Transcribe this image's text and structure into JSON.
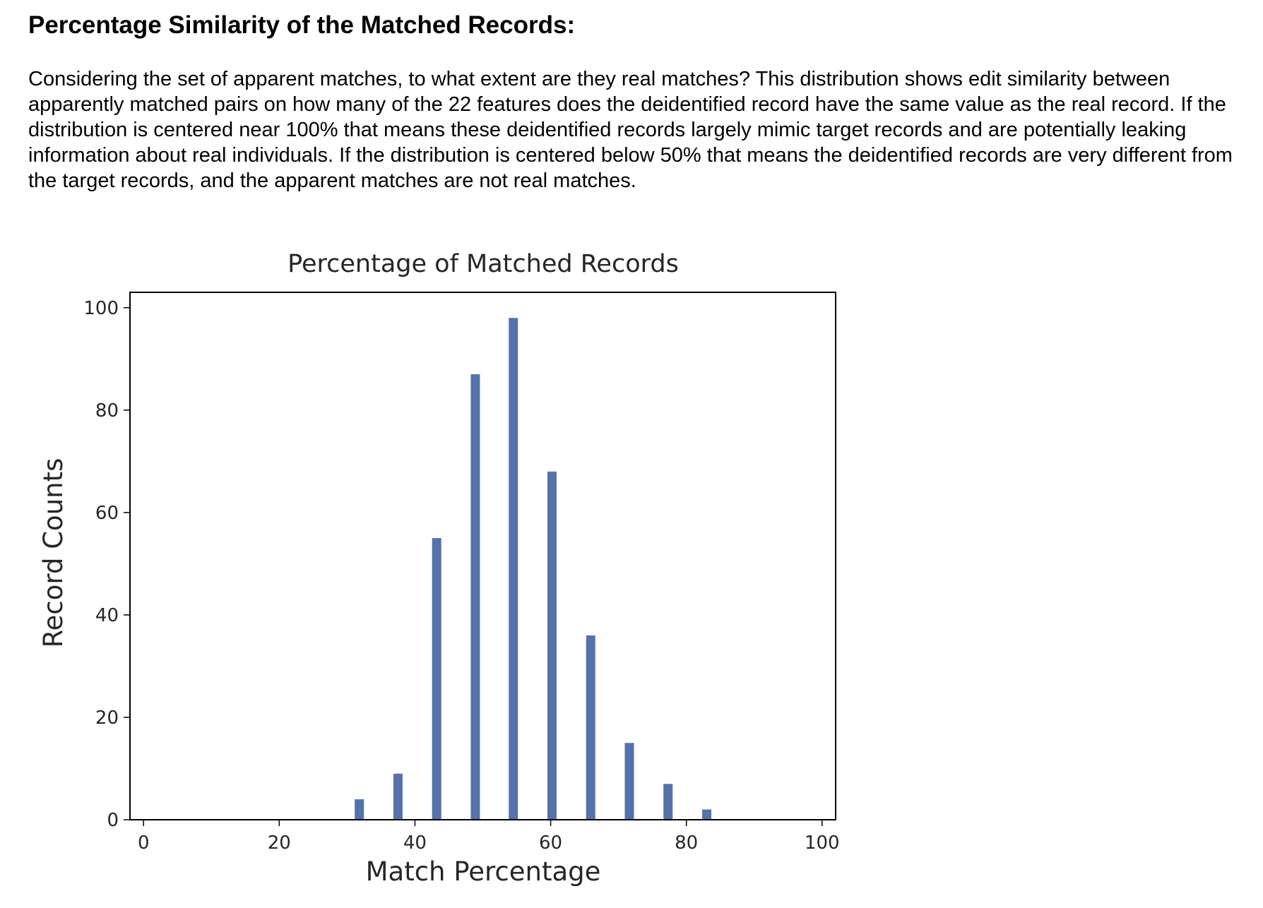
{
  "section": {
    "title": "Percentage Similarity of the Matched Records:",
    "description": "Considering the set of apparent matches, to what extent are they real matches? This distribution shows edit similarity between apparently matched pairs on how many of the 22 features does the deidentified record have the same value as the real record. If the distribution is centered near 100% that means these deidentified records largely mimic target records and are potentially leaking information about real individuals. If the distribution is centered below 50% that means the deidentified records are very different from the target records, and the apparent matches are not real matches."
  },
  "chart_data": {
    "type": "bar",
    "title": "Percentage of Matched Records",
    "xlabel": "Match Percentage",
    "ylabel": "Record Counts",
    "x": [
      31.8,
      37.5,
      43.2,
      48.9,
      54.5,
      60.2,
      65.9,
      71.6,
      77.3,
      83.0
    ],
    "values": [
      4,
      9,
      55,
      87,
      98,
      68,
      36,
      15,
      7,
      2
    ],
    "xlim": [
      -2,
      102
    ],
    "ylim": [
      0,
      103
    ],
    "xticks": [
      0,
      20,
      40,
      60,
      80,
      100
    ],
    "yticks": [
      0,
      20,
      40,
      60,
      80,
      100
    ],
    "bar_color": "#5572aa",
    "grid": false,
    "legend": "none"
  }
}
